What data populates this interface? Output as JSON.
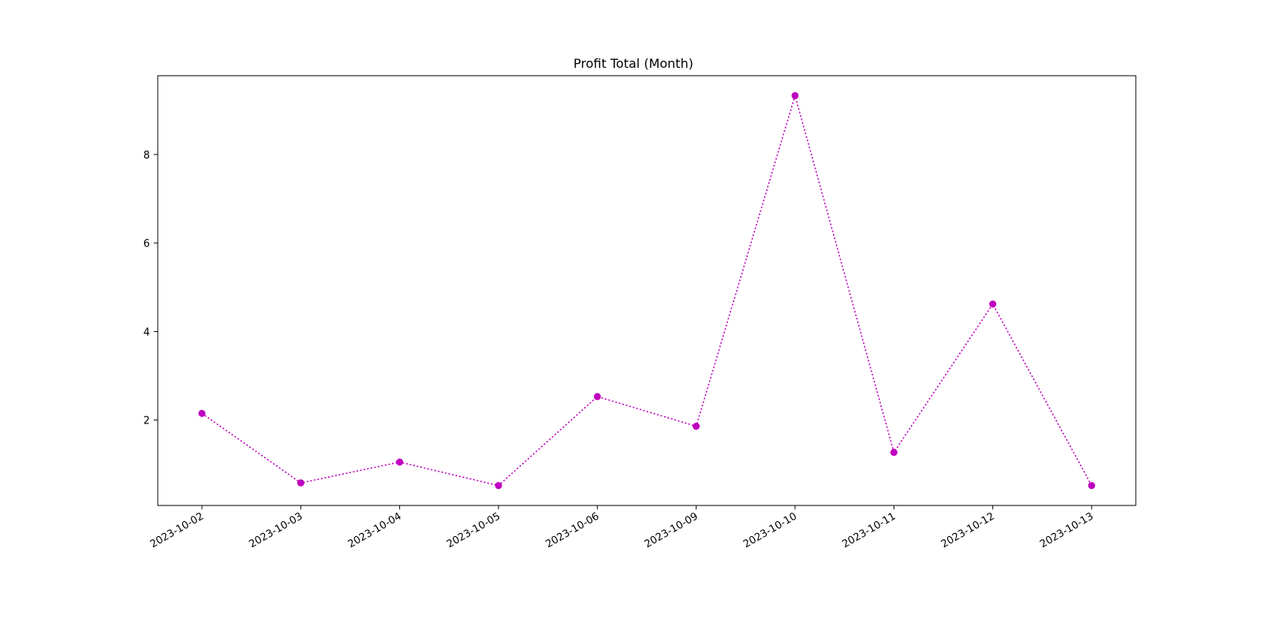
{
  "chart_data": {
    "type": "line",
    "title": "Profit Total (Month)",
    "xlabel": "",
    "ylabel": "",
    "categories": [
      "2023-10-02",
      "2023-10-03",
      "2023-10-04",
      "2023-10-05",
      "2023-10-06",
      "2023-10-09",
      "2023-10-10",
      "2023-10-11",
      "2023-10-12",
      "2023-10-13"
    ],
    "series": [
      {
        "values": [
          2.15,
          0.58,
          1.05,
          0.52,
          2.53,
          1.86,
          9.33,
          1.27,
          4.62,
          0.52
        ],
        "color": "#bf00bf",
        "line_style": "dotted",
        "marker": "circle"
      }
    ],
    "ylim": [
      0.07,
      9.78
    ],
    "yticks": [
      2,
      4,
      6,
      8
    ],
    "grid": false,
    "legend": "none"
  }
}
